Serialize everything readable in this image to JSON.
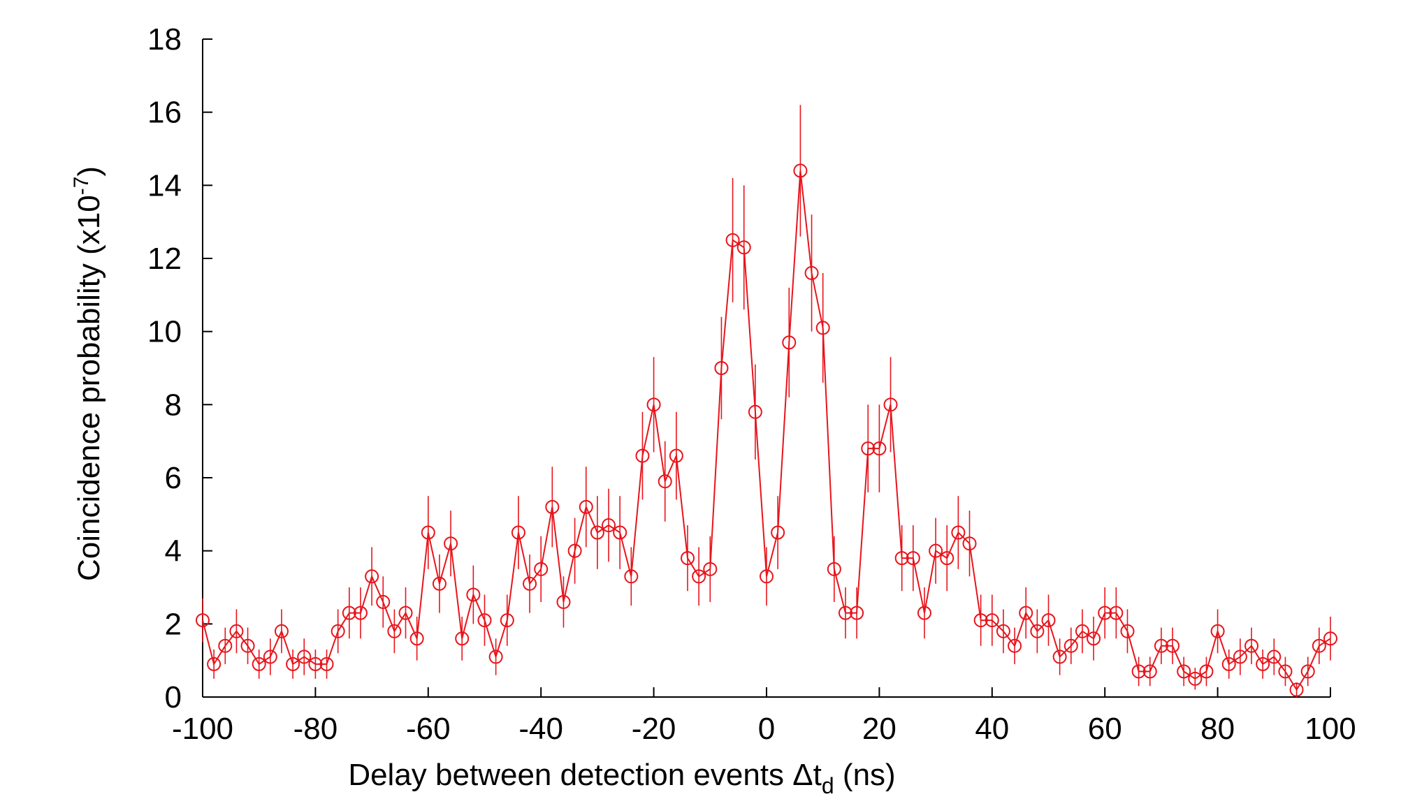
{
  "chart_data": {
    "type": "scatter",
    "xlabel": "Delay between detection events Δt",
    "xlabel_subscript": "d",
    "xlabel_suffix": " (ns)",
    "ylabel": "Coincidence probability (x10",
    "ylabel_superscript": "-7",
    "ylabel_suffix": ")",
    "xlim": [
      -100,
      100
    ],
    "ylim": [
      0,
      18
    ],
    "xticks": [
      -100,
      -80,
      -60,
      -40,
      -20,
      0,
      20,
      40,
      60,
      80,
      100
    ],
    "yticks": [
      0,
      2,
      4,
      6,
      8,
      10,
      12,
      14,
      16,
      18
    ],
    "grid": false,
    "legend": "none",
    "marker": "open-circle",
    "connected": true,
    "color": "#e8141b",
    "series": [
      {
        "x": [
          -100,
          -98,
          -96,
          -94,
          -92,
          -90,
          -88,
          -86,
          -84,
          -82,
          -80,
          -78,
          -76,
          -74,
          -72,
          -70,
          -68,
          -66,
          -64,
          -62,
          -60,
          -58,
          -56,
          -54,
          -52,
          -50,
          -48,
          -46,
          -44,
          -42,
          -40,
          -38,
          -36,
          -34,
          -32,
          -30,
          -28,
          -26,
          -24,
          -22,
          -20,
          -18,
          -16,
          -14,
          -12,
          -10,
          -8,
          -6,
          -4,
          -2,
          0,
          2,
          4,
          6,
          8,
          10,
          12,
          14,
          16,
          18,
          20,
          22,
          24,
          26,
          28,
          30,
          32,
          34,
          36,
          38,
          40,
          42,
          44,
          46,
          48,
          50,
          52,
          54,
          56,
          58,
          60,
          62,
          64,
          66,
          68,
          70,
          72,
          74,
          76,
          78,
          80,
          82,
          84,
          86,
          88,
          90,
          92,
          94,
          96,
          98,
          100
        ],
        "y": [
          2.1,
          0.9,
          1.4,
          1.8,
          1.4,
          0.9,
          1.1,
          1.8,
          0.9,
          1.1,
          0.9,
          0.9,
          1.8,
          2.3,
          2.3,
          3.3,
          2.6,
          1.8,
          2.3,
          1.6,
          4.5,
          3.1,
          4.2,
          1.6,
          2.8,
          2.1,
          1.1,
          2.1,
          4.5,
          3.1,
          3.5,
          5.2,
          2.6,
          4.0,
          5.2,
          4.5,
          4.7,
          4.5,
          3.3,
          6.6,
          8.0,
          5.9,
          6.6,
          3.8,
          3.3,
          3.5,
          9.0,
          12.5,
          12.3,
          7.8,
          3.3,
          4.5,
          9.7,
          14.4,
          11.6,
          10.1,
          3.5,
          2.3,
          2.3,
          6.8,
          6.8,
          8.0,
          3.8,
          3.8,
          2.3,
          4.0,
          3.8,
          4.5,
          4.2,
          2.1,
          2.1,
          1.8,
          1.4,
          2.3,
          1.8,
          2.1,
          1.1,
          1.4,
          1.8,
          1.6,
          2.3,
          2.3,
          1.8,
          0.7,
          0.7,
          1.4,
          1.4,
          0.7,
          0.5,
          0.7,
          1.8,
          0.9,
          1.1,
          1.4,
          0.9,
          1.1,
          0.7,
          0.2,
          0.7,
          1.4,
          1.6
        ],
        "yerr": [
          0.6,
          0.4,
          0.5,
          0.6,
          0.5,
          0.4,
          0.5,
          0.6,
          0.4,
          0.5,
          0.4,
          0.4,
          0.6,
          0.7,
          0.7,
          0.8,
          0.7,
          0.6,
          0.7,
          0.6,
          1.0,
          0.8,
          0.9,
          0.6,
          0.8,
          0.7,
          0.5,
          0.7,
          1.0,
          0.8,
          0.9,
          1.1,
          0.7,
          0.9,
          1.1,
          1.0,
          1.0,
          1.0,
          0.8,
          1.2,
          1.3,
          1.1,
          1.2,
          0.9,
          0.8,
          0.9,
          1.4,
          1.7,
          1.7,
          1.3,
          0.8,
          1.0,
          1.5,
          1.8,
          1.6,
          1.5,
          0.9,
          0.7,
          0.7,
          1.2,
          1.2,
          1.3,
          0.9,
          0.9,
          0.7,
          0.9,
          0.9,
          1.0,
          0.9,
          0.7,
          0.7,
          0.6,
          0.5,
          0.7,
          0.6,
          0.7,
          0.5,
          0.5,
          0.6,
          0.6,
          0.7,
          0.7,
          0.6,
          0.4,
          0.4,
          0.5,
          0.5,
          0.4,
          0.3,
          0.4,
          0.6,
          0.4,
          0.5,
          0.5,
          0.4,
          0.5,
          0.4,
          0.2,
          0.4,
          0.5,
          0.6
        ]
      }
    ]
  }
}
